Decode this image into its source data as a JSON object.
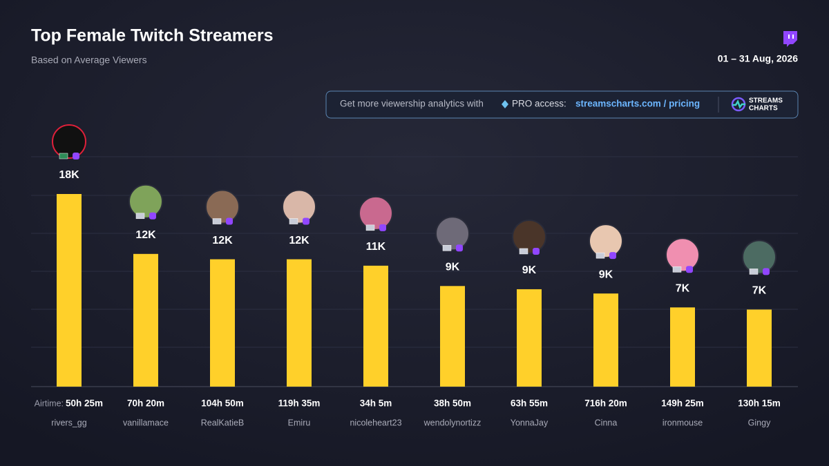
{
  "chart_data": {
    "type": "bar",
    "title": "Top Female Twitch Streamers",
    "subtitle": "Based on Average Viewers",
    "date": "01 – 31 Aug, 2026",
    "categories": [
      "rivers_gg",
      "vanillamace",
      "RealKatieB",
      "Emiru",
      "nicoleheart23",
      "wendolynortizz",
      "YonnaJay",
      "Cinna",
      "ironmouse",
      "Gingy"
    ],
    "values": [
      18000,
      12400,
      11900,
      11900,
      11300,
      9400,
      9100,
      8700,
      7400,
      7200
    ],
    "value_labels": [
      "18K",
      "12K",
      "12K",
      "12K",
      "11K",
      "9K",
      "9K",
      "9K",
      "7K",
      "7K"
    ],
    "airtime_label": "Airtime:",
    "airtime": [
      "50h 25m",
      "70h 20m",
      "104h 50m",
      "119h 35m",
      "34h 5m",
      "38h 50m",
      "63h 55m",
      "716h 20m",
      "149h 25m",
      "130h 15m"
    ],
    "color": "#ffd02a"
  },
  "promo": {
    "text": "Get more viewership analytics with",
    "pro": "PRO access:",
    "link": "streamscharts.com / pricing",
    "logo": [
      "STREAMS",
      "CHARTS"
    ]
  }
}
